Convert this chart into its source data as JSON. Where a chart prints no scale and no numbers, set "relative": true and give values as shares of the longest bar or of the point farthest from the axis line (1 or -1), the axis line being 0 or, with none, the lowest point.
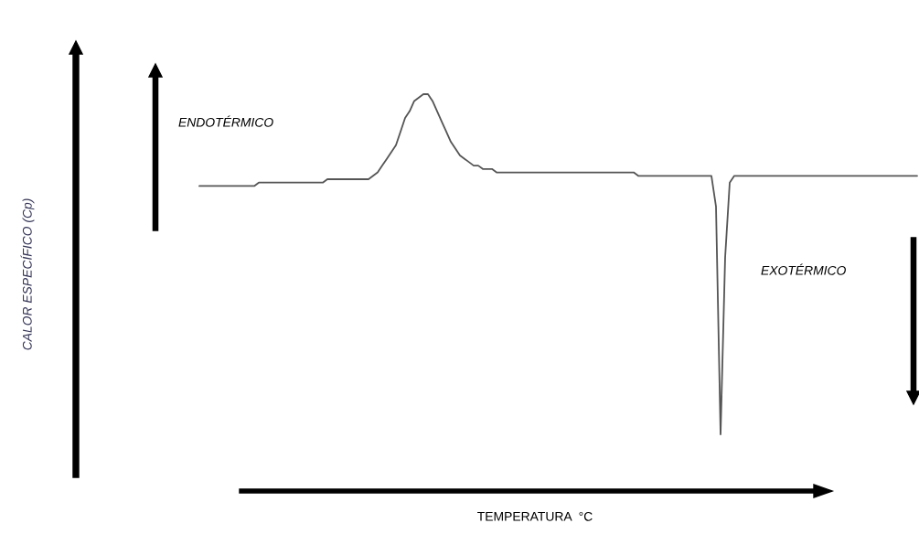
{
  "chart_data": {
    "type": "line",
    "relative": true,
    "annotations": [
      "ENDOTÉRMICO",
      "EXOTÉRMICO",
      "TEMPERATURA  °C",
      "CALOR ESPECÍFICO (Cp)"
    ],
    "categories": [
      null,
      null,
      null,
      null,
      null,
      null,
      null,
      null,
      null,
      null,
      null,
      null,
      null,
      null,
      null,
      null,
      null,
      null,
      null,
      null,
      null,
      null,
      null,
      null,
      null,
      null,
      null,
      null,
      null,
      null,
      null,
      null,
      null,
      null,
      null,
      null,
      null,
      null,
      null,
      null,
      null,
      null,
      null,
      null,
      null,
      null,
      null,
      null,
      null,
      null,
      null,
      null,
      null,
      null,
      null,
      null,
      null,
      null,
      null,
      null,
      null,
      null,
      null,
      null,
      null,
      null,
      null,
      null,
      null,
      null,
      null,
      null,
      null,
      null,
      null,
      null,
      null,
      null,
      null,
      null,
      null,
      null,
      null,
      null,
      null,
      null,
      null,
      null,
      null,
      null,
      null,
      null,
      null,
      null,
      null,
      null,
      null,
      null,
      null,
      null,
      null,
      null,
      null,
      null,
      null,
      null,
      null,
      null,
      null,
      null,
      null,
      null,
      null,
      null,
      null,
      null,
      null,
      null,
      null,
      null,
      null,
      null,
      null,
      null,
      null,
      null,
      null,
      null,
      null,
      null,
      null,
      null,
      null,
      null,
      null,
      null,
      null,
      null,
      null,
      null,
      null,
      null,
      null,
      null,
      null,
      null,
      null,
      null,
      null,
      null,
      null,
      null,
      null,
      null,
      null,
      null,
      null,
      null
    ],
    "series": [
      {
        "color": "#555555",
        "values": [
          0.73,
          0.73,
          0.73,
          0.73,
          0.73,
          0.73,
          0.73,
          0.73,
          0.73,
          0.73,
          0.73,
          0.73,
          0.73,
          0.74,
          0.74,
          0.74,
          0.74,
          0.74,
          0.74,
          0.74,
          0.74,
          0.74,
          0.74,
          0.74,
          0.74,
          0.74,
          0.74,
          0.74,
          0.75,
          0.75,
          0.75,
          0.75,
          0.75,
          0.75,
          0.75,
          0.75,
          0.75,
          0.75,
          0.76,
          0.77,
          0.79,
          0.81,
          0.83,
          0.85,
          0.89,
          0.93,
          0.95,
          0.98,
          0.99,
          1,
          1,
          0.98,
          0.95,
          0.92,
          0.89,
          0.86,
          0.84,
          0.82,
          0.81,
          0.8,
          0.79,
          0.79,
          0.78,
          0.78,
          0.78,
          0.77,
          0.77,
          0.77,
          0.77,
          0.77,
          0.77,
          0.77,
          0.77,
          0.77,
          0.77,
          0.77,
          0.77,
          0.77,
          0.77,
          0.77,
          0.77,
          0.77,
          0.77,
          0.77,
          0.77,
          0.77,
          0.77,
          0.77,
          0.77,
          0.77,
          0.77,
          0.77,
          0.77,
          0.77,
          0.77,
          0.77,
          0.76,
          0.76,
          0.76,
          0.76,
          0.76,
          0.76,
          0.76,
          0.76,
          0.76,
          0.76,
          0.76,
          0.76,
          0.76,
          0.76,
          0.76,
          0.76,
          0.76,
          0.67,
          0,
          0.52,
          0.74,
          0.76,
          0.76,
          0.76,
          0.76,
          0.76,
          0.76,
          0.76,
          0.76,
          0.76,
          0.76,
          0.76,
          0.76,
          0.76,
          0.76,
          0.76,
          0.76,
          0.76,
          0.76,
          0.76,
          0.76,
          0.76,
          0.76,
          0.76,
          0.76,
          0.76,
          0.76,
          0.76,
          0.76,
          0.76,
          0.76,
          0.76,
          0.76,
          0.76,
          0.76,
          0.76,
          0.76,
          0.76,
          0.76,
          0.76,
          0.76,
          0.76
        ]
      }
    ],
    "line_style": "solid",
    "marker": "none",
    "grid": false,
    "legend": false
  }
}
